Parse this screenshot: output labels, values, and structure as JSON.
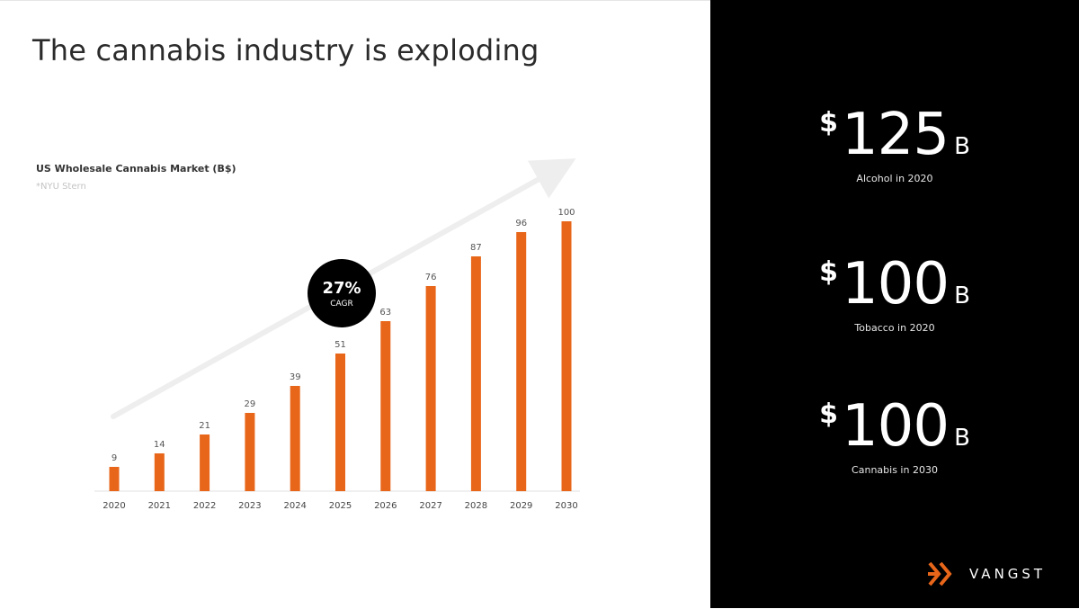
{
  "slide": {
    "title": "The cannabis industry is exploding"
  },
  "chart_data": {
    "type": "bar",
    "title": "US Wholesale Cannabis Market (B$)",
    "subtitle": "*NYU Stern",
    "categories": [
      "2020",
      "2021",
      "2022",
      "2023",
      "2024",
      "2025",
      "2026",
      "2027",
      "2028",
      "2029",
      "2030"
    ],
    "values": [
      9,
      14,
      21,
      29,
      39,
      51,
      63,
      76,
      87,
      96,
      100
    ],
    "data_labels": [
      "9",
      "14",
      "21",
      "29",
      "39",
      "51",
      "63",
      "76",
      "87",
      "96",
      "100"
    ],
    "ylim": [
      0,
      100
    ],
    "grid": false,
    "legend": "none",
    "annotation": {
      "value": "27%",
      "label": "CAGR"
    },
    "bar_color": "#e8661a",
    "arrow_color": "#eeeeee"
  },
  "stats": [
    {
      "currency": "$",
      "value": "125",
      "unit": "B",
      "label": "Alcohol in 2020"
    },
    {
      "currency": "$",
      "value": "100",
      "unit": "B",
      "label": "Tobacco in 2020"
    },
    {
      "currency": "$",
      "value": "100",
      "unit": "B",
      "label": "Cannabis in 2030"
    }
  ],
  "brand": {
    "name": "VANGST",
    "logo_icon": "double-chevron-logo",
    "accent": "#e8661a"
  }
}
